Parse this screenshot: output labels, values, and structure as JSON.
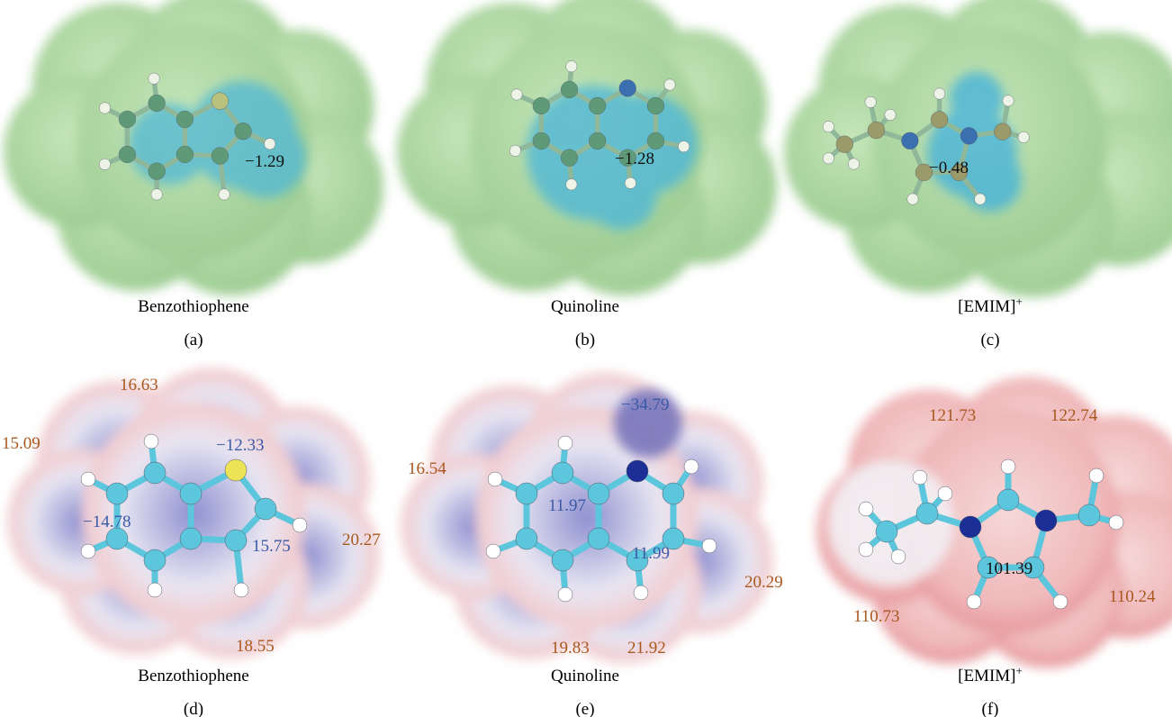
{
  "panels": [
    {
      "caption": "Benzothiophene",
      "label": "(a)",
      "black_labels": [
        "−1.29"
      ]
    },
    {
      "caption": "Quinoline",
      "label": "(b)",
      "black_labels": [
        "−1.28"
      ]
    },
    {
      "caption": "[EMIM]",
      "caption_sup": "+",
      "label": "(c)",
      "black_labels": [
        "−0.48"
      ]
    },
    {
      "caption": "Benzothiophene",
      "label": "(d)",
      "orange_labels": [
        "16.63",
        "15.09",
        "20.27",
        "18.55"
      ],
      "blue_labels": [
        "−12.33",
        "−14.78",
        "15.75"
      ]
    },
    {
      "caption": "Quinoline",
      "label": "(e)",
      "orange_labels": [
        "16.54",
        "20.29",
        "19.83",
        "21.92"
      ],
      "blue_labels": [
        "−34.79",
        "11.97",
        "11.99"
      ]
    },
    {
      "caption": "[EMIM]",
      "caption_sup": "+",
      "label": "(f)",
      "orange_labels": [
        "121.73",
        "122.74",
        "110.24",
        "110.73"
      ],
      "black_labels": [
        "101.39"
      ]
    }
  ]
}
